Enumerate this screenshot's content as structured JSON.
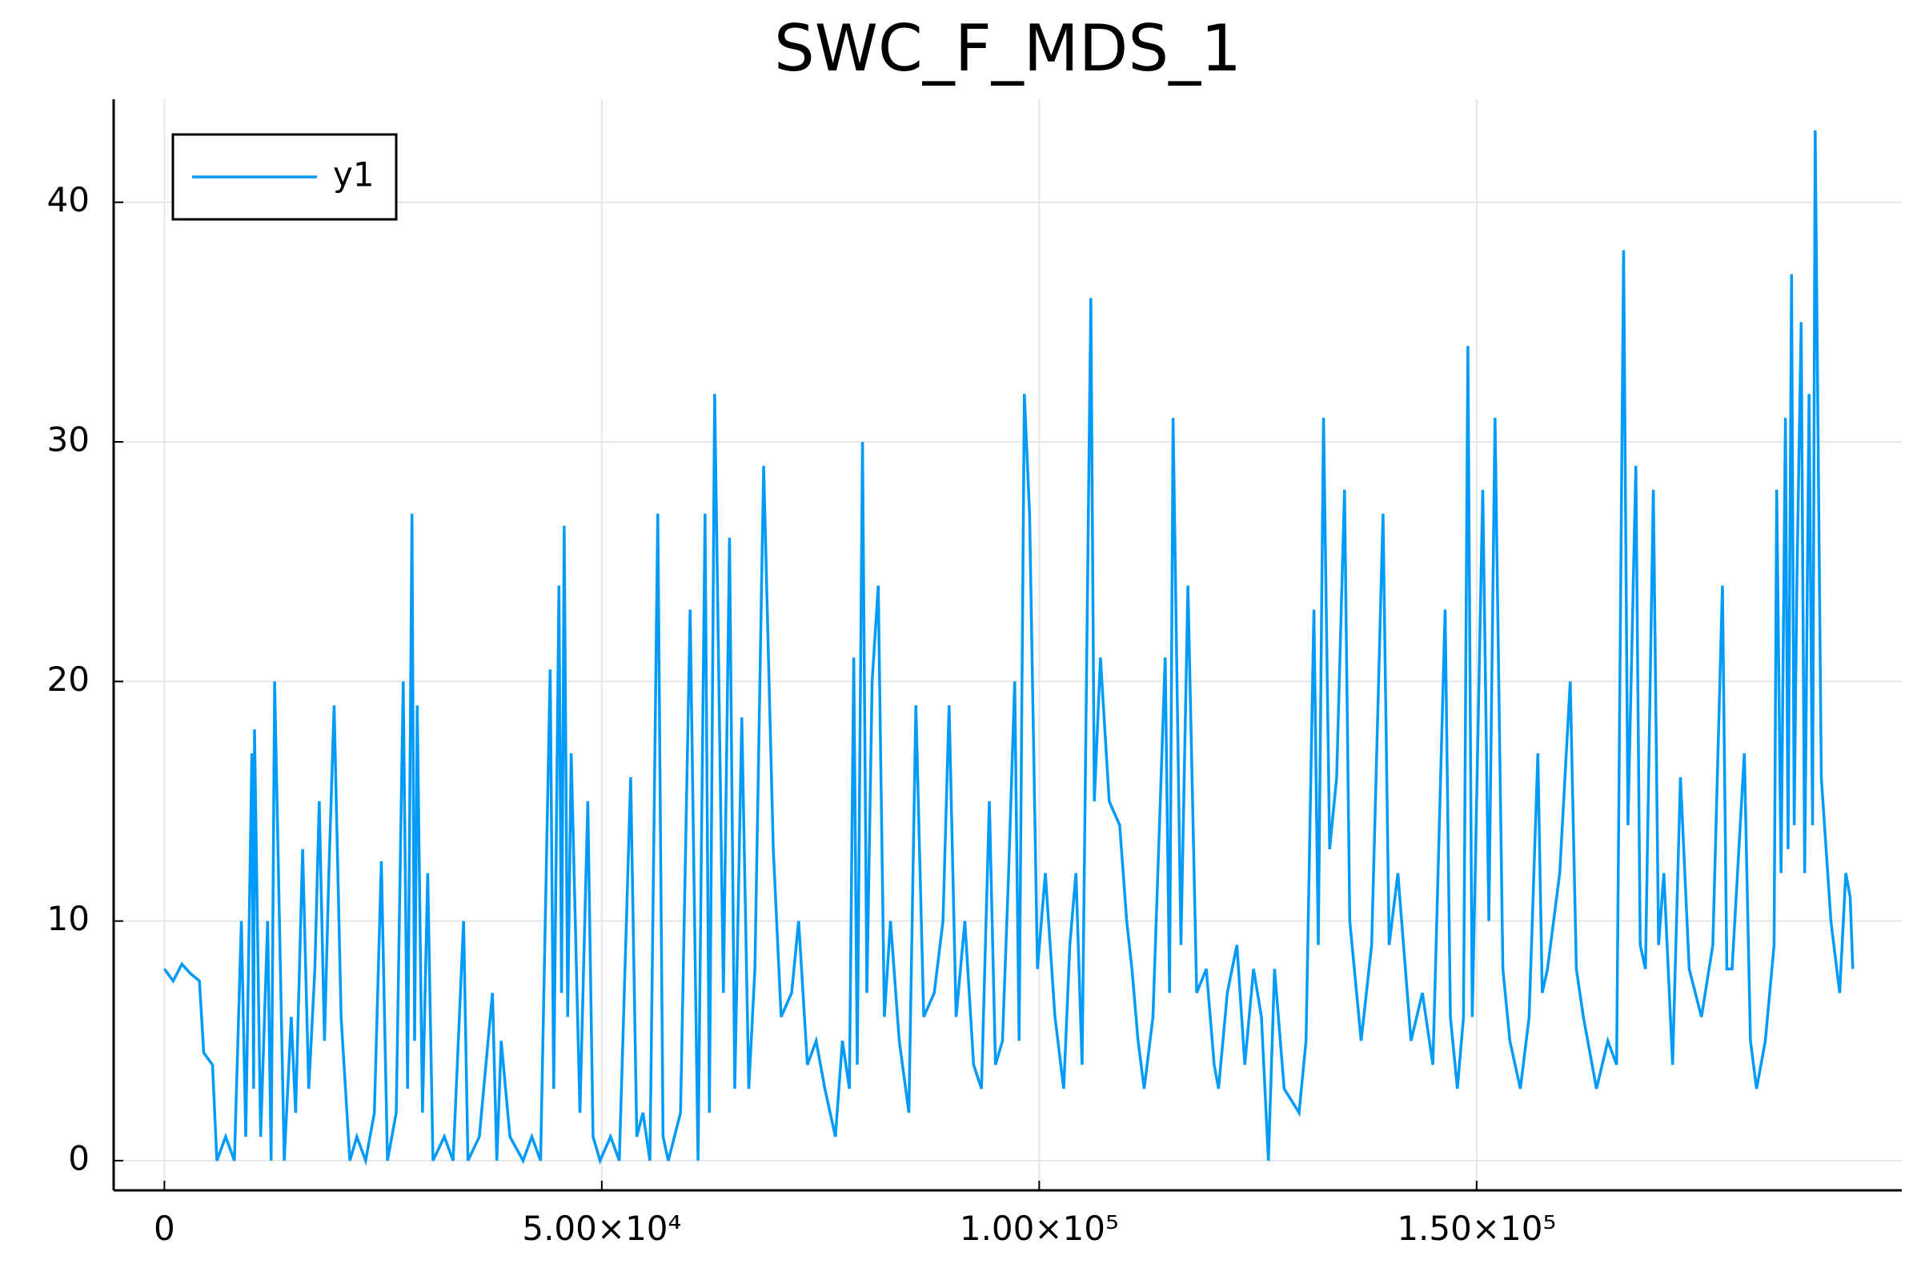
{
  "chart_data": {
    "type": "line",
    "title": "SWC_F_MDS_1",
    "x": [
      0,
      1000,
      2000,
      3000,
      4000,
      4500,
      5500,
      6000,
      7000,
      8000,
      8800,
      9300,
      10000,
      10200,
      10300,
      11000,
      11800,
      12200,
      12600,
      13700,
      14500,
      15000,
      15800,
      16500,
      17200,
      17700,
      18300,
      18800,
      19400,
      20200,
      21200,
      22000,
      23000,
      24000,
      24800,
      25500,
      26500,
      27300,
      27800,
      28300,
      28600,
      28900,
      29500,
      30100,
      30700,
      32000,
      33000,
      34200,
      34700,
      36000,
      37500,
      38000,
      38500,
      39500,
      41000,
      42000,
      43000,
      44100,
      44500,
      45100,
      45400,
      45700,
      46100,
      46500,
      47500,
      48400,
      49000,
      49800,
      51000,
      52000,
      53300,
      54000,
      54700,
      55500,
      56400,
      57000,
      57600,
      59000,
      60100,
      61000,
      61800,
      62300,
      62900,
      63900,
      64600,
      65200,
      66000,
      66800,
      67500,
      68500,
      69600,
      70500,
      71700,
      72500,
      73500,
      74500,
      75500,
      76700,
      77500,
      78300,
      78800,
      79200,
      79800,
      80300,
      80900,
      81600,
      82300,
      83000,
      84000,
      85100,
      85900,
      86800,
      88000,
      89000,
      89700,
      90500,
      91500,
      92500,
      93400,
      94300,
      95000,
      95800,
      96500,
      97200,
      97700,
      98300,
      98900,
      99800,
      100700,
      101800,
      102800,
      103500,
      104200,
      104900,
      105900,
      106300,
      107000,
      108000,
      109200,
      110000,
      110600,
      111300,
      112000,
      113000,
      114400,
      114900,
      115300,
      116200,
      117000,
      118000,
      119100,
      120000,
      120500,
      121500,
      122600,
      123500,
      124500,
      125400,
      126200,
      126900,
      128000,
      129700,
      130500,
      131400,
      131900,
      132500,
      133200,
      134000,
      134900,
      135500,
      136800,
      138000,
      139300,
      140000,
      141000,
      142500,
      143800,
      145000,
      146400,
      147000,
      147800,
      148500,
      149000,
      149500,
      150000,
      150700,
      151400,
      152100,
      153000,
      153800,
      155000,
      156000,
      157000,
      157500,
      158100,
      159500,
      160700,
      161400,
      162200,
      163700,
      165000,
      166000,
      166800,
      167300,
      168200,
      168700,
      169300,
      170200,
      170800,
      171400,
      172400,
      173300,
      174300,
      175700,
      177000,
      178100,
      178600,
      179200,
      180600,
      181300,
      182000,
      183000,
      184000,
      184300,
      184800,
      185300,
      185600,
      186000,
      186300,
      186600,
      187100,
      187500,
      188000,
      188400,
      188700,
      189400,
      190500,
      191500,
      192200,
      192700,
      193000
    ],
    "series": [
      {
        "name": "y1",
        "color": "#009af9",
        "values": [
          8,
          7.5,
          8.2,
          7.8,
          7.5,
          4.5,
          4,
          0,
          1,
          0,
          10,
          1,
          17,
          3,
          18,
          1,
          10,
          0,
          20,
          0,
          6,
          2,
          13,
          3,
          8,
          15,
          5,
          12,
          19,
          6,
          0,
          1,
          0,
          2,
          12.5,
          0,
          2,
          20,
          3,
          27,
          5,
          19,
          2,
          12,
          0,
          1,
          0,
          10,
          0,
          1,
          7,
          0,
          5,
          1,
          0,
          1,
          0,
          20.5,
          3,
          24,
          7,
          26.5,
          6,
          17,
          2,
          15,
          1,
          0,
          1,
          0,
          16,
          1,
          2,
          0,
          27,
          1,
          0,
          2,
          23,
          0,
          27,
          2,
          32,
          7,
          26,
          3,
          18.5,
          3,
          8,
          29,
          13,
          6,
          7,
          10,
          4,
          5,
          3,
          1,
          5,
          3,
          21,
          4,
          30,
          7,
          20,
          24,
          6,
          10,
          5,
          2,
          19,
          6,
          7,
          10,
          19,
          6,
          10,
          4,
          3,
          15,
          4,
          5,
          12,
          20,
          5,
          32,
          27,
          8,
          12,
          6,
          3,
          9,
          12,
          4,
          36,
          15,
          21,
          15,
          14,
          10,
          8,
          5,
          3,
          6,
          21,
          7,
          31,
          9,
          24,
          7,
          8,
          4,
          3,
          7,
          9,
          4,
          8,
          6,
          0,
          8,
          3,
          2,
          5,
          23,
          9,
          31,
          13,
          16,
          28,
          10,
          5,
          9,
          27,
          9,
          12,
          5,
          7,
          4,
          23,
          6,
          3,
          6,
          34,
          6,
          15,
          28,
          10,
          31,
          8,
          5,
          3,
          6,
          17,
          7,
          8,
          12,
          20,
          8,
          6,
          3,
          5,
          4,
          38,
          14,
          29,
          9,
          8,
          28,
          9,
          12,
          4,
          16,
          8,
          6,
          9,
          24,
          8,
          8,
          17,
          5,
          3,
          5,
          9,
          28,
          12,
          31,
          13,
          37,
          14,
          24,
          35,
          12,
          32,
          14,
          43,
          16,
          10,
          7,
          12,
          11,
          8
        ]
      }
    ],
    "xlim": [
      -5800,
      198600
    ],
    "ylim": [
      -1.24,
      44.3
    ],
    "xticks": [
      0,
      {
        "value": 50000,
        "label": "5.00×10⁴"
      },
      {
        "value": 100000,
        "label": "1.00×10⁵"
      },
      {
        "value": 150000,
        "label": "1.50×10⁵"
      }
    ],
    "yticks": [
      0,
      10,
      20,
      30,
      40
    ],
    "grid": true,
    "legend": "top-left"
  }
}
